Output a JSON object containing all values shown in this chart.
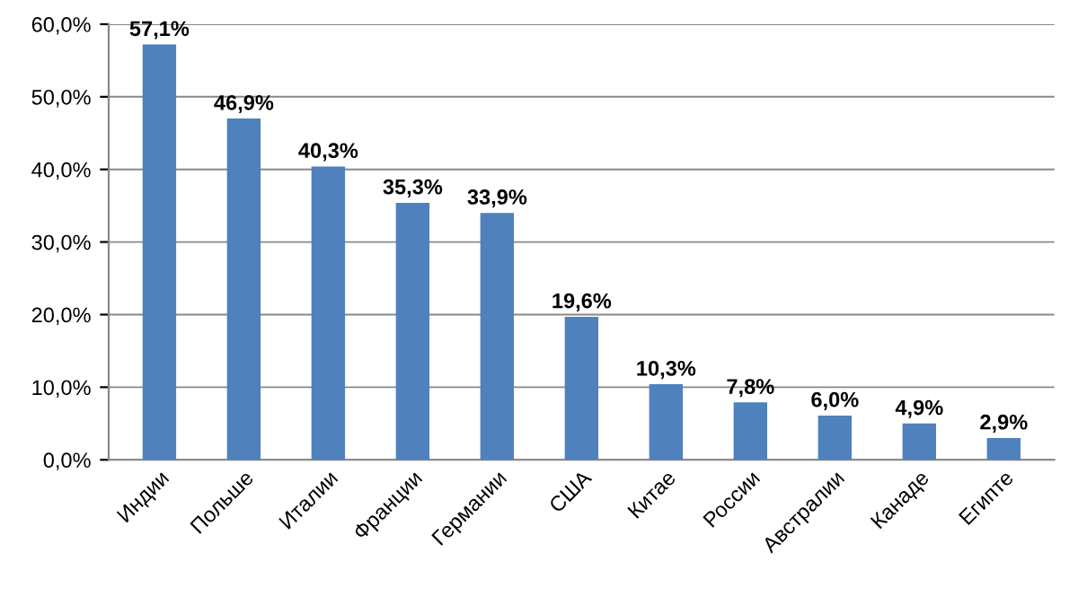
{
  "chart_data": {
    "type": "bar",
    "categories": [
      "Индии",
      "Польше",
      "Италии",
      "Франции",
      "Германии",
      "США",
      "Китае",
      "России",
      "Австралии",
      "Канаде",
      "Египте"
    ],
    "values": [
      57.1,
      46.9,
      40.3,
      35.3,
      33.9,
      19.6,
      10.3,
      7.8,
      6.0,
      4.9,
      2.9
    ],
    "value_labels": [
      "57,1%",
      "46,9%",
      "40,3%",
      "35,3%",
      "33,9%",
      "19,6%",
      "10,3%",
      "7,8%",
      "6,0%",
      "4,9%",
      "2,9%"
    ],
    "color": "#4f81bd",
    "ylim": [
      0,
      60
    ],
    "yticks": [
      {
        "value": 0,
        "label": "0,0%"
      },
      {
        "value": 10,
        "label": "10,0%"
      },
      {
        "value": 20,
        "label": "20,0%"
      },
      {
        "value": 30,
        "label": "30,0%"
      },
      {
        "value": 40,
        "label": "40,0%"
      },
      {
        "value": 50,
        "label": "50,0%"
      },
      {
        "value": 60,
        "label": "60,0%"
      }
    ],
    "grid": "y"
  }
}
